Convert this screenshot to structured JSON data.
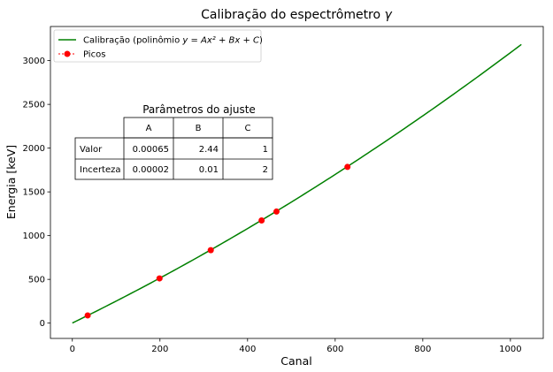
{
  "chart_data": {
    "type": "scatter",
    "title_prefix": "Calibração do espectrômetro ",
    "title_symbol": "γ",
    "xlabel": "Canal",
    "ylabel": "Energia [keV]",
    "xlim": [
      -50,
      1075
    ],
    "ylim": [
      -175,
      3390
    ],
    "x_ticks": [
      "0",
      "200",
      "400",
      "600",
      "800",
      "1000"
    ],
    "y_ticks": [
      "0",
      "500",
      "1000",
      "1500",
      "2000",
      "2500",
      "3000"
    ],
    "grid": false,
    "legend_position": "top-left",
    "series": [
      {
        "kind": "line",
        "color": "#008000",
        "legend_text": "Calibração (polinômio ",
        "legend_formula": "y = Ax² + Bx + C",
        "legend_suffix": ")",
        "coefficients": {
          "A": 0.00065,
          "B": 2.44,
          "C": 1
        },
        "x_range": [
          0,
          1025
        ]
      },
      {
        "kind": "points",
        "name": "Picos",
        "color": "#ff0000",
        "x": [
          35,
          199,
          316,
          432,
          466,
          628
        ],
        "y": [
          88,
          511,
          834,
          1173,
          1275,
          1785
        ]
      }
    ],
    "table": {
      "title": "Parâmetros do ajuste",
      "columns": [
        "A",
        "B",
        "C"
      ],
      "rows": [
        {
          "label": "Valor",
          "values": [
            "0.00065",
            "2.44",
            "1"
          ]
        },
        {
          "label": "Incerteza",
          "values": [
            "0.00002",
            "0.01",
            "2"
          ]
        }
      ]
    }
  }
}
